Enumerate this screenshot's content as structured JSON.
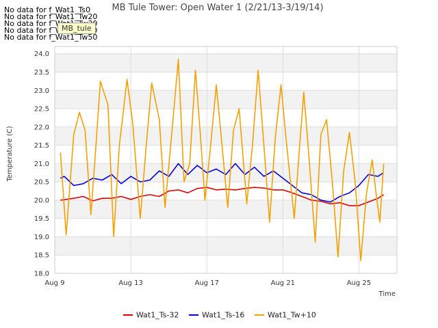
{
  "notes": [
    "No data for f_Wat1_Ts0",
    "No data for f_Wat1_Tw20",
    "No data for f_Wat1_Tw30",
    "No data for f_Wat1_Tw40",
    "No data for f_Wat1_Tw50"
  ],
  "badge_label": "MB_tule",
  "chart_data": {
    "type": "line",
    "title": "MB Tule Tower: Open Water 1 (2/21/13-3/19/14)",
    "xlabel": "Time",
    "ylabel": "Temperature (C)",
    "xlim": [
      0,
      18
    ],
    "ylim": [
      18.0,
      24.2
    ],
    "yticks": [
      18.0,
      18.5,
      19.0,
      19.5,
      20.0,
      20.5,
      21.0,
      21.5,
      22.0,
      22.5,
      23.0,
      23.5,
      24.0
    ],
    "xticks": [
      {
        "x": 0,
        "label": "Aug 9"
      },
      {
        "x": 4,
        "label": "Aug 13"
      },
      {
        "x": 8,
        "label": "Aug 17"
      },
      {
        "x": 12,
        "label": "Aug 21"
      },
      {
        "x": 16,
        "label": "Aug 25"
      }
    ],
    "grid": true,
    "legend": "bottom",
    "series": [
      {
        "name": "Wat1_Ts-32",
        "color": "#dd0000",
        "x": [
          0.3,
          1,
          1.5,
          2,
          2.5,
          3,
          3.5,
          4,
          4.5,
          5,
          5.5,
          6,
          6.5,
          7,
          7.5,
          8,
          8.5,
          9,
          9.5,
          10,
          10.5,
          11,
          11.5,
          12,
          12.5,
          13,
          13.5,
          14,
          14.5,
          15,
          15.5,
          16,
          16.5,
          17,
          17.3
        ],
        "y": [
          20.0,
          20.05,
          20.1,
          19.98,
          20.05,
          20.05,
          20.1,
          20.02,
          20.1,
          20.15,
          20.1,
          20.25,
          20.28,
          20.2,
          20.32,
          20.35,
          20.28,
          20.3,
          20.28,
          20.32,
          20.35,
          20.33,
          20.28,
          20.28,
          20.2,
          20.1,
          20.0,
          19.97,
          19.9,
          19.93,
          19.85,
          19.85,
          19.95,
          20.05,
          20.15
        ]
      },
      {
        "name": "Wat1_Ts-16",
        "color": "#0000dd",
        "x": [
          0.3,
          0.5,
          1,
          1.5,
          2,
          2.5,
          3,
          3.5,
          4,
          4.5,
          5,
          5.5,
          6,
          6.5,
          7,
          7.5,
          8,
          8.5,
          9,
          9.5,
          10,
          10.5,
          11,
          11.5,
          12,
          12.5,
          13,
          13.5,
          14,
          14.5,
          15,
          15.5,
          16,
          16.5,
          17,
          17.3
        ],
        "y": [
          20.6,
          20.65,
          20.4,
          20.45,
          20.6,
          20.55,
          20.7,
          20.45,
          20.65,
          20.5,
          20.55,
          20.8,
          20.65,
          21.0,
          20.7,
          20.95,
          20.75,
          20.85,
          20.7,
          21.0,
          20.7,
          20.9,
          20.65,
          20.8,
          20.6,
          20.4,
          20.2,
          20.15,
          20.0,
          19.95,
          20.1,
          20.2,
          20.4,
          20.7,
          20.65,
          20.75
        ]
      },
      {
        "name": "Wat1_Tw+10",
        "color": "#f5a000",
        "x": [
          0.3,
          0.6,
          1.0,
          1.1,
          1.3,
          1.6,
          1.9,
          2.1,
          2.4,
          2.8,
          3.1,
          3.4,
          3.8,
          4.1,
          4.5,
          4.8,
          5.1,
          5.5,
          5.8,
          6.1,
          6.5,
          6.8,
          7.1,
          7.4,
          7.7,
          7.9,
          8.2,
          8.5,
          8.8,
          9.1,
          9.4,
          9.7,
          10.1,
          10.4,
          10.7,
          11.0,
          11.3,
          11.6,
          11.9,
          12.2,
          12.6,
          12.9,
          13.1,
          13.4,
          13.7,
          14.0,
          14.3,
          14.6,
          14.9,
          15.2,
          15.5,
          15.8,
          16.1,
          16.4,
          16.7,
          16.9,
          17.1,
          17.3
        ],
        "y": [
          21.3,
          19.05,
          21.8,
          22.0,
          22.4,
          21.9,
          19.6,
          21.0,
          23.25,
          22.6,
          19.0,
          21.5,
          23.3,
          22.1,
          19.5,
          21.4,
          23.2,
          22.2,
          19.8,
          21.5,
          23.85,
          20.5,
          21.0,
          23.55,
          21.5,
          20.0,
          21.5,
          23.15,
          21.5,
          19.8,
          21.9,
          22.5,
          19.9,
          21.5,
          23.55,
          21.5,
          19.4,
          21.7,
          23.15,
          21.5,
          19.5,
          21.6,
          22.95,
          21.0,
          18.85,
          21.8,
          22.2,
          20.5,
          18.45,
          20.8,
          21.85,
          20.5,
          18.35,
          20.2,
          21.1,
          20.2,
          19.4,
          21.0
        ]
      }
    ]
  }
}
